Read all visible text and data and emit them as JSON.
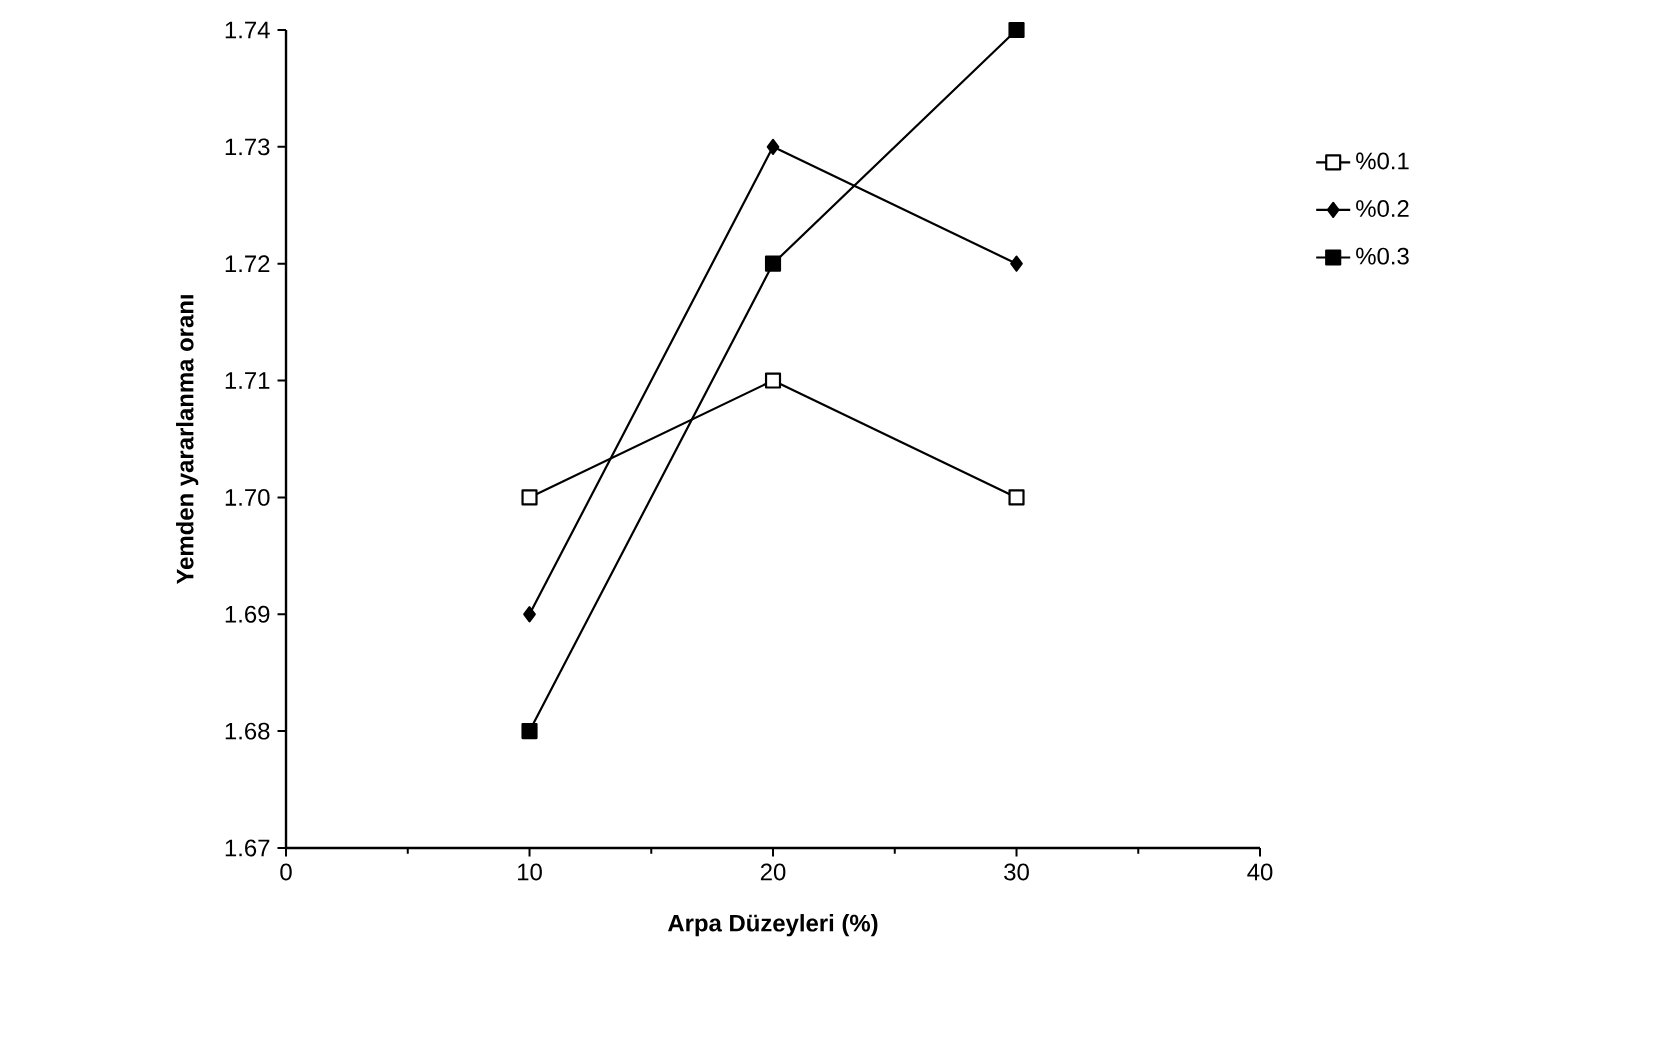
{
  "chart_data": {
    "type": "line",
    "xlabel": "Arpa Düzeyleri (%)",
    "ylabel": "Yemden yararlanma oranı",
    "x": [
      10,
      20,
      30
    ],
    "series": [
      {
        "name": "%0.1",
        "color": "#000000",
        "values": [
          1.7,
          1.71,
          1.7
        ],
        "marker": "square"
      },
      {
        "name": "%0.2",
        "color": "#000000",
        "values": [
          1.69,
          1.73,
          1.72
        ],
        "marker": "diamond"
      },
      {
        "name": "%0.3",
        "color": "#000000",
        "values": [
          1.68,
          1.72,
          1.74
        ],
        "marker": "square"
      }
    ],
    "xlim": [
      0,
      40
    ],
    "xticks": [
      0,
      10,
      20,
      30,
      40
    ],
    "ylim": [
      1.67,
      1.74
    ],
    "yticks": [
      {
        "value": 1.67,
        "label": "1.67"
      },
      {
        "value": 1.68,
        "label": "1.68"
      },
      {
        "value": 1.69,
        "label": "1.69"
      },
      {
        "value": 1.7,
        "label": "1.70"
      },
      {
        "value": 1.71,
        "label": "1.71"
      },
      {
        "value": 1.72,
        "label": "1.72"
      },
      {
        "value": 1.73,
        "label": "1.73"
      },
      {
        "value": 1.74,
        "label": "1.74"
      }
    ],
    "legend": "right",
    "grid": false,
    "line_style": "solid"
  }
}
